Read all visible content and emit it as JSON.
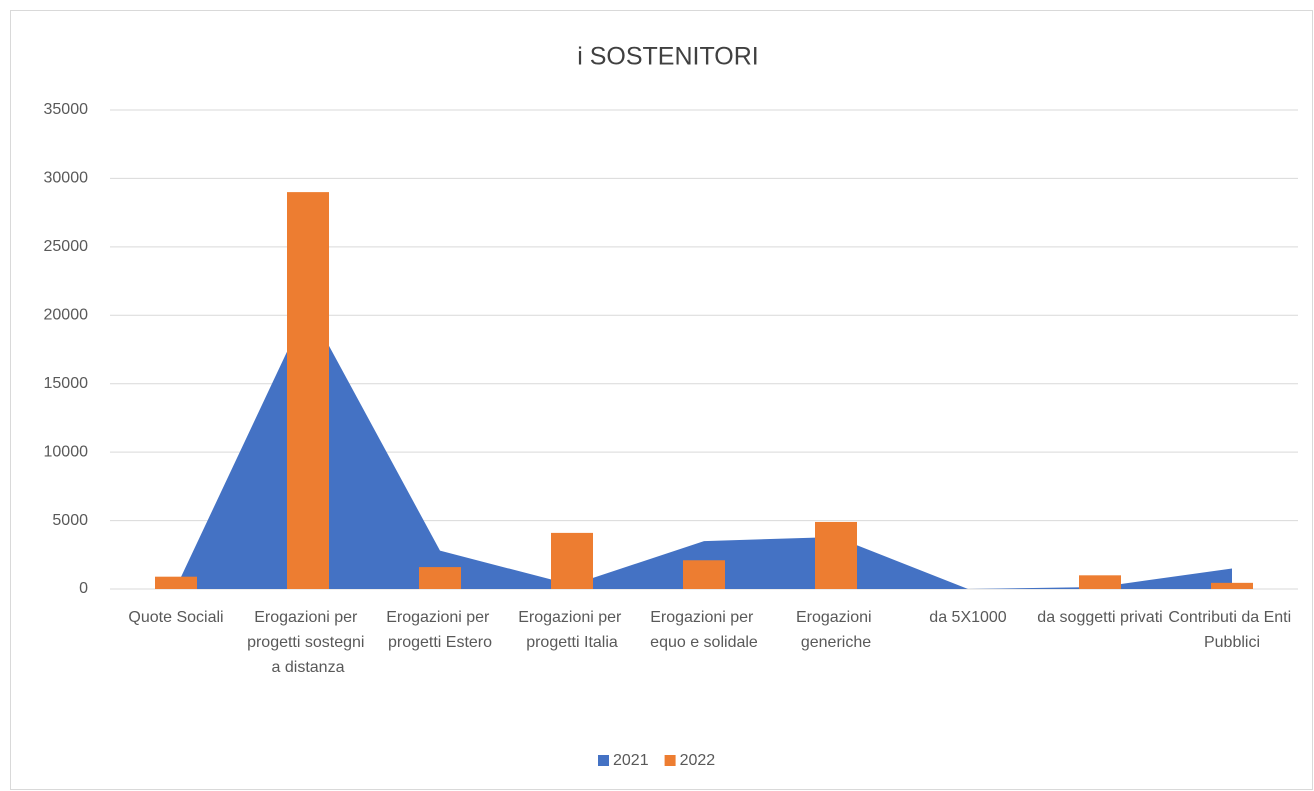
{
  "chart_data": {
    "type": "combo",
    "title": "i SOSTENITORI",
    "categories": [
      "Quote Sociali",
      "Erogazioni per progetti sostegni a distanza",
      "Erogazioni per progetti Estero",
      "Erogazioni per progetti Italia",
      "Erogazioni per equo e solidale",
      "Erogazioni generiche",
      "da 5X1000",
      "da soggetti privati",
      "Contributi da Enti Pubblici"
    ],
    "series": [
      {
        "name": "2021",
        "type": "area",
        "color": "#4472c4",
        "values": [
          100,
          20600,
          2800,
          300,
          3500,
          3800,
          0,
          150,
          1500
        ]
      },
      {
        "name": "2022",
        "type": "bar",
        "color": "#ed7d31",
        "values": [
          900,
          29000,
          1600,
          4100,
          2100,
          4900,
          0,
          1000,
          450
        ]
      }
    ],
    "ylim": [
      0,
      35000
    ],
    "yticks": [
      0,
      5000,
      10000,
      15000,
      20000,
      25000,
      30000,
      35000
    ],
    "grid": true,
    "legend": "bottom"
  }
}
